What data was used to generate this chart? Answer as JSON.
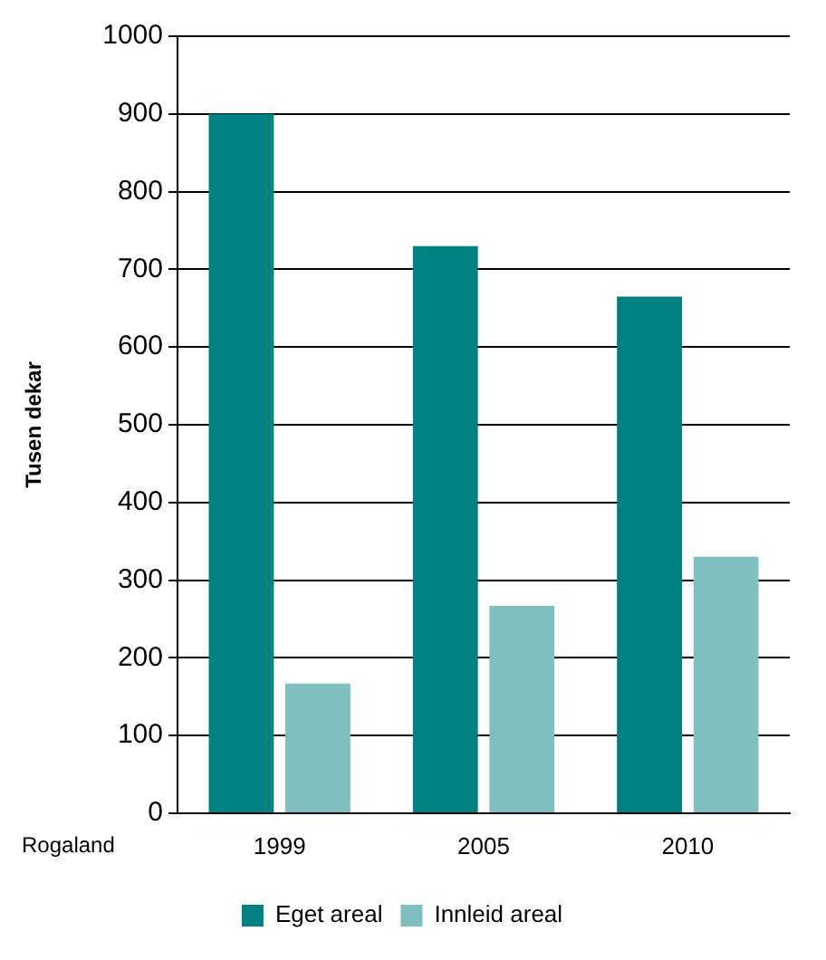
{
  "chart_data": {
    "type": "bar",
    "ylabel": "Tusen dekar",
    "categories": [
      "1999",
      "2005",
      "2010"
    ],
    "series": [
      {
        "name": "Eget areal",
        "color": "#008080",
        "values": [
          900,
          730,
          665
        ]
      },
      {
        "name": "Innleid areal",
        "color": "#7fbfbf",
        "values": [
          167,
          267,
          330
        ]
      }
    ],
    "ylim": [
      0,
      1000
    ],
    "yticks": [
      0,
      100,
      200,
      300,
      400,
      500,
      600,
      700,
      800,
      900,
      1000
    ],
    "grid": "y",
    "legend": "bottom",
    "annotations": [
      "Rogaland"
    ]
  }
}
